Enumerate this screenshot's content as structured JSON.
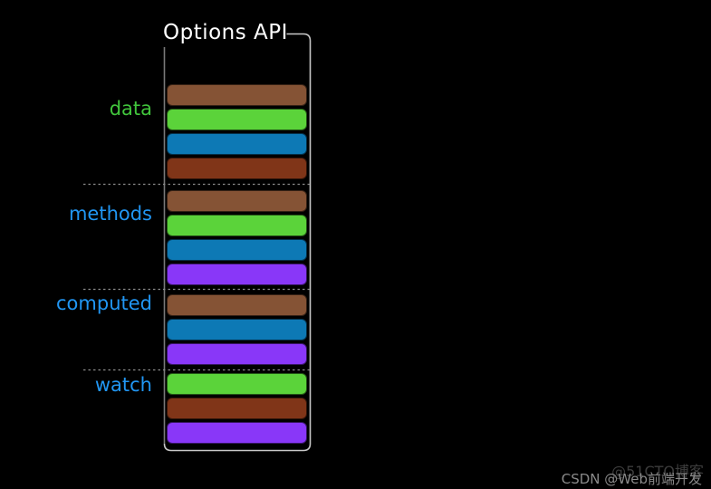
{
  "title": "Options API",
  "palette": {
    "brown": "#855335",
    "green": "#5bd33a",
    "blue": "#0d79b5",
    "darkred": "#803518",
    "purple": "#8937f8"
  },
  "frame_color": "#c9c9c9",
  "frame_left_color": "#7a7a7a",
  "dashed_line_color": "#8a8a8a",
  "title_color": "#ffffff",
  "sections": [
    {
      "label": "data",
      "label_color": "#41c53c",
      "bars": [
        "brown",
        "green",
        "blue",
        "darkred"
      ]
    },
    {
      "label": "methods",
      "label_color": "#2196f3",
      "bars": [
        "brown",
        "green",
        "blue",
        "purple"
      ]
    },
    {
      "label": "computed",
      "label_color": "#2196f3",
      "bars": [
        "brown",
        "blue",
        "purple"
      ]
    },
    {
      "label": "watch",
      "label_color": "#2196f3",
      "bars": [
        "green",
        "darkred",
        "purple"
      ]
    }
  ],
  "watermarks": {
    "cto51": "@51CTO博客",
    "csdn": "CSDN @Web前端开发"
  }
}
